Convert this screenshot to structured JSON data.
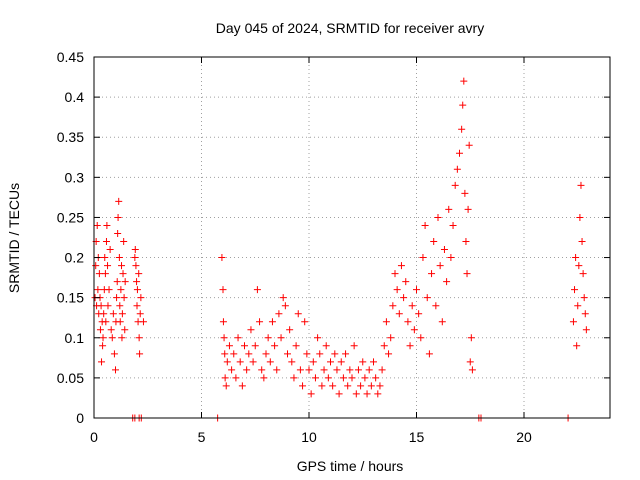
{
  "chart_data": {
    "type": "scatter",
    "title": "Day 045 of 2024, SRMTID for receiver avry",
    "xlabel": "GPS time / hours",
    "ylabel": "SRMTID / TECUs",
    "xlim": [
      0,
      24
    ],
    "ylim": [
      0,
      0.45
    ],
    "xticks": [
      0,
      5,
      10,
      15,
      20
    ],
    "yticks": [
      0,
      0.05,
      0.1,
      0.15,
      0.2,
      0.25,
      0.3,
      0.35,
      0.4,
      0.45
    ],
    "xtick_labels": [
      "0",
      "5",
      "10",
      "15",
      "20"
    ],
    "ytick_labels": [
      "0",
      "0.05",
      "0.1",
      "0.15",
      "0.2",
      "0.25",
      "0.3",
      "0.35",
      "0.4",
      "0.45"
    ],
    "grid": true,
    "marker": "plus",
    "color": "#ff0000",
    "series": [
      {
        "values": [
          [
            0.05,
            0.15
          ],
          [
            0.08,
            0.19
          ],
          [
            0.1,
            0.22
          ],
          [
            0.12,
            0.14
          ],
          [
            0.15,
            0.24
          ],
          [
            0.18,
            0.16
          ],
          [
            0.2,
            0.2
          ],
          [
            0.22,
            0.13
          ],
          [
            0.25,
            0.18
          ],
          [
            0.28,
            0.15
          ],
          [
            0.3,
            0.11
          ],
          [
            0.33,
            0.14
          ],
          [
            0.35,
            0.07
          ],
          [
            0.38,
            0.12
          ],
          [
            0.4,
            0.09
          ],
          [
            0.42,
            0.1
          ],
          [
            0.45,
            0.13
          ],
          [
            0.48,
            0.16
          ],
          [
            0.5,
            0.2
          ],
          [
            0.53,
            0.18
          ],
          [
            0.55,
            0.12
          ],
          [
            0.58,
            0.22
          ],
          [
            0.6,
            0.24
          ],
          [
            0.63,
            0.19
          ],
          [
            0.65,
            0.14
          ],
          [
            0.7,
            0.16
          ],
          [
            0.75,
            0.21
          ],
          [
            0.8,
            0.11
          ],
          [
            0.85,
            0.1
          ],
          [
            0.9,
            0.13
          ],
          [
            0.95,
            0.08
          ],
          [
            1.0,
            0.06
          ],
          [
            1.02,
            0.12
          ],
          [
            1.05,
            0.15
          ],
          [
            1.08,
            0.17
          ],
          [
            1.1,
            0.23
          ],
          [
            1.12,
            0.25
          ],
          [
            1.15,
            0.27
          ],
          [
            1.18,
            0.2
          ],
          [
            1.2,
            0.14
          ],
          [
            1.22,
            0.12
          ],
          [
            1.25,
            0.16
          ],
          [
            1.28,
            0.19
          ],
          [
            1.3,
            0.1
          ],
          [
            1.32,
            0.13
          ],
          [
            1.35,
            0.18
          ],
          [
            1.38,
            0.22
          ],
          [
            1.4,
            0.15
          ],
          [
            1.43,
            0.11
          ],
          [
            1.45,
            0.17
          ],
          [
            1.9,
            0.2
          ],
          [
            1.92,
            0.21
          ],
          [
            1.95,
            0.19
          ],
          [
            1.98,
            0.17
          ],
          [
            2.0,
            0.14
          ],
          [
            2.02,
            0.16
          ],
          [
            2.05,
            0.12
          ],
          [
            2.08,
            0.18
          ],
          [
            2.1,
            0.1
          ],
          [
            2.12,
            0.08
          ],
          [
            2.15,
            0.13
          ],
          [
            2.18,
            0.15
          ],
          [
            2.3,
            0.12
          ],
          [
            5.95,
            0.2
          ],
          [
            6.0,
            0.16
          ],
          [
            6.02,
            0.12
          ],
          [
            6.05,
            0.1
          ],
          [
            6.08,
            0.08
          ],
          [
            6.1,
            0.05
          ],
          [
            6.15,
            0.04
          ],
          [
            6.2,
            0.07
          ],
          [
            6.3,
            0.09
          ],
          [
            6.4,
            0.06
          ],
          [
            6.5,
            0.08
          ],
          [
            6.6,
            0.05
          ],
          [
            6.7,
            0.1
          ],
          [
            6.8,
            0.07
          ],
          [
            6.9,
            0.04
          ],
          [
            7.0,
            0.09
          ],
          [
            7.1,
            0.06
          ],
          [
            7.2,
            0.08
          ],
          [
            7.3,
            0.11
          ],
          [
            7.4,
            0.07
          ],
          [
            7.5,
            0.09
          ],
          [
            7.6,
            0.16
          ],
          [
            7.7,
            0.12
          ],
          [
            7.8,
            0.06
          ],
          [
            7.9,
            0.05
          ],
          [
            8.0,
            0.08
          ],
          [
            8.1,
            0.1
          ],
          [
            8.2,
            0.07
          ],
          [
            8.3,
            0.12
          ],
          [
            8.4,
            0.09
          ],
          [
            8.5,
            0.06
          ],
          [
            8.6,
            0.13
          ],
          [
            8.7,
            0.1
          ],
          [
            8.8,
            0.15
          ],
          [
            8.9,
            0.14
          ],
          [
            9.0,
            0.08
          ],
          [
            9.1,
            0.11
          ],
          [
            9.2,
            0.07
          ],
          [
            9.3,
            0.05
          ],
          [
            9.4,
            0.09
          ],
          [
            9.5,
            0.13
          ],
          [
            9.6,
            0.06
          ],
          [
            9.7,
            0.04
          ],
          [
            9.8,
            0.12
          ],
          [
            9.9,
            0.08
          ],
          [
            10.0,
            0.06
          ],
          [
            10.1,
            0.03
          ],
          [
            10.2,
            0.07
          ],
          [
            10.3,
            0.05
          ],
          [
            10.4,
            0.1
          ],
          [
            10.5,
            0.08
          ],
          [
            10.6,
            0.04
          ],
          [
            10.7,
            0.06
          ],
          [
            10.8,
            0.09
          ],
          [
            10.9,
            0.05
          ],
          [
            11.0,
            0.07
          ],
          [
            11.1,
            0.04
          ],
          [
            11.2,
            0.08
          ],
          [
            11.3,
            0.06
          ],
          [
            11.4,
            0.03
          ],
          [
            11.5,
            0.07
          ],
          [
            11.6,
            0.05
          ],
          [
            11.7,
            0.08
          ],
          [
            11.8,
            0.04
          ],
          [
            11.9,
            0.06
          ],
          [
            12.0,
            0.05
          ],
          [
            12.1,
            0.09
          ],
          [
            12.2,
            0.03
          ],
          [
            12.3,
            0.06
          ],
          [
            12.4,
            0.04
          ],
          [
            12.5,
            0.07
          ],
          [
            12.6,
            0.05
          ],
          [
            12.7,
            0.03
          ],
          [
            12.8,
            0.06
          ],
          [
            12.9,
            0.04
          ],
          [
            13.0,
            0.07
          ],
          [
            13.1,
            0.05
          ],
          [
            13.2,
            0.03
          ],
          [
            13.3,
            0.04
          ],
          [
            13.4,
            0.06
          ],
          [
            13.5,
            0.09
          ],
          [
            13.6,
            0.12
          ],
          [
            13.7,
            0.08
          ],
          [
            13.8,
            0.1
          ],
          [
            13.9,
            0.14
          ],
          [
            14.0,
            0.18
          ],
          [
            14.1,
            0.16
          ],
          [
            14.2,
            0.13
          ],
          [
            14.3,
            0.19
          ],
          [
            14.4,
            0.15
          ],
          [
            14.5,
            0.17
          ],
          [
            14.6,
            0.12
          ],
          [
            14.7,
            0.09
          ],
          [
            14.8,
            0.14
          ],
          [
            14.9,
            0.11
          ],
          [
            15.0,
            0.16
          ],
          [
            15.1,
            0.13
          ],
          [
            15.2,
            0.1
          ],
          [
            15.3,
            0.2
          ],
          [
            15.4,
            0.24
          ],
          [
            15.5,
            0.15
          ],
          [
            15.6,
            0.08
          ],
          [
            15.7,
            0.18
          ],
          [
            15.8,
            0.22
          ],
          [
            15.9,
            0.14
          ],
          [
            16.0,
            0.25
          ],
          [
            16.1,
            0.19
          ],
          [
            16.2,
            0.12
          ],
          [
            16.3,
            0.21
          ],
          [
            16.4,
            0.17
          ],
          [
            16.5,
            0.26
          ],
          [
            16.6,
            0.2
          ],
          [
            16.7,
            0.24
          ],
          [
            16.8,
            0.29
          ],
          [
            16.9,
            0.31
          ],
          [
            17.0,
            0.33
          ],
          [
            17.1,
            0.36
          ],
          [
            17.15,
            0.39
          ],
          [
            17.2,
            0.42
          ],
          [
            17.25,
            0.28
          ],
          [
            17.3,
            0.22
          ],
          [
            17.35,
            0.18
          ],
          [
            17.4,
            0.26
          ],
          [
            17.45,
            0.34
          ],
          [
            17.5,
            0.07
          ],
          [
            17.55,
            0.1
          ],
          [
            17.6,
            0.06
          ],
          [
            22.3,
            0.12
          ],
          [
            22.35,
            0.16
          ],
          [
            22.4,
            0.2
          ],
          [
            22.45,
            0.09
          ],
          [
            22.5,
            0.14
          ],
          [
            22.55,
            0.19
          ],
          [
            22.6,
            0.25
          ],
          [
            22.65,
            0.29
          ],
          [
            22.7,
            0.22
          ],
          [
            22.75,
            0.18
          ],
          [
            22.8,
            0.15
          ],
          [
            22.85,
            0.13
          ],
          [
            22.9,
            0.11
          ]
        ]
      },
      {
        "values": [
          [
            1.8,
            0
          ],
          [
            1.9,
            0
          ],
          [
            2.1,
            0
          ],
          [
            2.2,
            0
          ],
          [
            5.75,
            0
          ],
          [
            17.9,
            0
          ],
          [
            18.0,
            0
          ],
          [
            22.05,
            0
          ]
        ]
      }
    ]
  }
}
